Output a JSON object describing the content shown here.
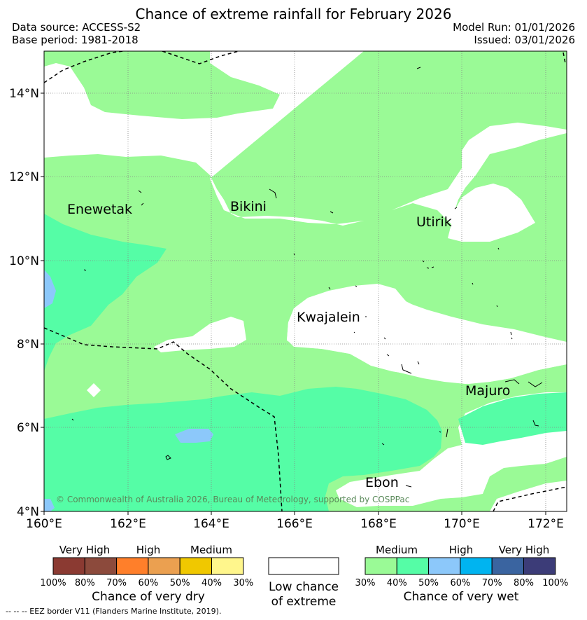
{
  "header": {
    "title": "Chance of extreme rainfall for February 2026",
    "data_source": "Data source: ACCESS-S2",
    "base_period": "Base period: 1981-2018",
    "model_run": "Model Run: 01/01/2026",
    "issued": "Issued: 03/01/2026"
  },
  "map": {
    "lat_labels": [
      "14°N",
      "12°N",
      "10°N",
      "8°N",
      "6°N",
      "4°N"
    ],
    "lon_labels": [
      "160°E",
      "162°E",
      "164°E",
      "166°E",
      "168°E",
      "170°E",
      "172°E"
    ],
    "places": [
      "Enewetak",
      "Bikini",
      "Utirik",
      "Kwajalein",
      "Majuro",
      "Ebon"
    ],
    "copyright": "© Commonwealth of Australia 2026, Bureau of Meteorology, supported by COSPPac"
  },
  "legend": {
    "dry": {
      "categories": [
        "Very High",
        "High",
        "Medium"
      ],
      "colors": [
        "#8b3a32",
        "#8c4a3c",
        "#ff7f2a",
        "#eba050",
        "#f0c800",
        "#fff68c"
      ],
      "ticks": [
        "100%",
        "80%",
        "70%",
        "60%",
        "50%",
        "40%",
        "30%"
      ],
      "title": "Chance of very dry"
    },
    "low": {
      "color": "#ffffff",
      "line1": "Low chance",
      "line2": "of extreme"
    },
    "wet": {
      "categories": [
        "Medium",
        "High",
        "Very High"
      ],
      "colors": [
        "#9afa96",
        "#55fda6",
        "#8cc8fa",
        "#00b4f0",
        "#3a64a0",
        "#3c3c78"
      ],
      "ticks": [
        "30%",
        "40%",
        "50%",
        "60%",
        "70%",
        "80%",
        "100%"
      ],
      "title": "Chance of very wet"
    },
    "footnote": "-- -- -- EEZ border V11 (Flanders Marine Institute, 2019)."
  }
}
